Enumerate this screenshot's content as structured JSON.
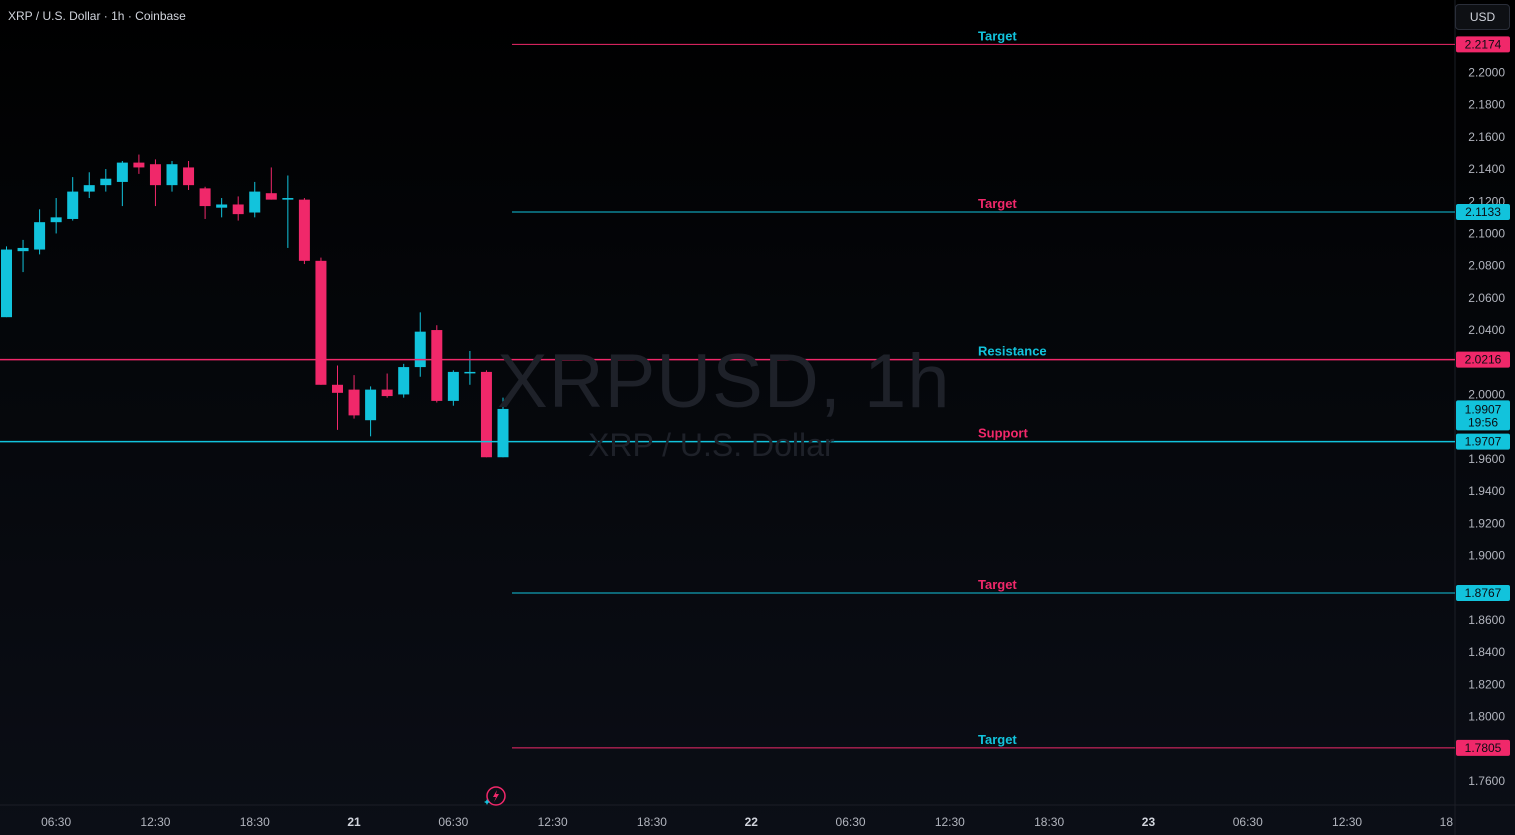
{
  "header": {
    "title": "XRP / U.S. Dollar · 1h · Coinbase"
  },
  "currency_button": {
    "label": "USD"
  },
  "watermark": {
    "symbol": "XRPUSD, 1h",
    "description": "XRP / U.S. Dollar"
  },
  "colors": {
    "up": "#12c3dc",
    "down": "#f0286a",
    "grid": "#1a1d25",
    "axis_text": "#b2b5be"
  },
  "chart_data": {
    "type": "candlestick",
    "y_scale": "linear",
    "ylim": [
      1.745,
      2.245
    ],
    "y_ticks": [
      "1.7600",
      "1.7800",
      "1.8000",
      "1.8200",
      "1.8400",
      "1.8600",
      "1.9000",
      "1.9200",
      "1.9400",
      "1.9600",
      "2.0000",
      "2.0400",
      "2.0600",
      "2.0800",
      "2.1000",
      "2.1200",
      "2.1400",
      "2.1600",
      "2.1800",
      "2.2000"
    ],
    "x_ticks": [
      {
        "label": "06:30",
        "bar": 3,
        "bold": false
      },
      {
        "label": "12:30",
        "bar": 9,
        "bold": false
      },
      {
        "label": "18:30",
        "bar": 15,
        "bold": false
      },
      {
        "label": "21",
        "bar": 21,
        "bold": true
      },
      {
        "label": "06:30",
        "bar": 27,
        "bold": false
      },
      {
        "label": "12:30",
        "bar": 33,
        "bold": false
      },
      {
        "label": "18:30",
        "bar": 39,
        "bold": false
      },
      {
        "label": "22",
        "bar": 45,
        "bold": true
      },
      {
        "label": "06:30",
        "bar": 51,
        "bold": false
      },
      {
        "label": "12:30",
        "bar": 57,
        "bold": false
      },
      {
        "label": "18:30",
        "bar": 63,
        "bold": false
      },
      {
        "label": "23",
        "bar": 69,
        "bold": true
      },
      {
        "label": "06:30",
        "bar": 75,
        "bold": false
      },
      {
        "label": "12:30",
        "bar": 81,
        "bold": false
      },
      {
        "label": "18",
        "bar": 87,
        "bold": false
      }
    ],
    "candles": [
      {
        "o": 2.048,
        "h": 2.092,
        "l": 2.048,
        "c": 2.09
      },
      {
        "o": 2.089,
        "h": 2.096,
        "l": 2.076,
        "c": 2.091
      },
      {
        "o": 2.09,
        "h": 2.115,
        "l": 2.087,
        "c": 2.107
      },
      {
        "o": 2.107,
        "h": 2.122,
        "l": 2.1,
        "c": 2.11
      },
      {
        "o": 2.109,
        "h": 2.135,
        "l": 2.108,
        "c": 2.126
      },
      {
        "o": 2.126,
        "h": 2.138,
        "l": 2.122,
        "c": 2.13
      },
      {
        "o": 2.13,
        "h": 2.14,
        "l": 2.126,
        "c": 2.134
      },
      {
        "o": 2.132,
        "h": 2.145,
        "l": 2.117,
        "c": 2.144
      },
      {
        "o": 2.144,
        "h": 2.149,
        "l": 2.137,
        "c": 2.141
      },
      {
        "o": 2.143,
        "h": 2.146,
        "l": 2.117,
        "c": 2.13
      },
      {
        "o": 2.13,
        "h": 2.145,
        "l": 2.126,
        "c": 2.143
      },
      {
        "o": 2.141,
        "h": 2.145,
        "l": 2.127,
        "c": 2.13
      },
      {
        "o": 2.128,
        "h": 2.129,
        "l": 2.109,
        "c": 2.117
      },
      {
        "o": 2.116,
        "h": 2.122,
        "l": 2.11,
        "c": 2.118
      },
      {
        "o": 2.118,
        "h": 2.123,
        "l": 2.108,
        "c": 2.112
      },
      {
        "o": 2.113,
        "h": 2.132,
        "l": 2.11,
        "c": 2.126
      },
      {
        "o": 2.125,
        "h": 2.141,
        "l": 2.121,
        "c": 2.121
      },
      {
        "o": 2.121,
        "h": 2.136,
        "l": 2.091,
        "c": 2.122
      },
      {
        "o": 2.121,
        "h": 2.122,
        "l": 2.081,
        "c": 2.083
      },
      {
        "o": 2.083,
        "h": 2.085,
        "l": 2.006,
        "c": 2.006
      },
      {
        "o": 2.006,
        "h": 2.018,
        "l": 1.978,
        "c": 2.001
      },
      {
        "o": 2.003,
        "h": 2.012,
        "l": 1.985,
        "c": 1.987
      },
      {
        "o": 1.984,
        "h": 2.005,
        "l": 1.974,
        "c": 2.003
      },
      {
        "o": 2.003,
        "h": 2.013,
        "l": 1.998,
        "c": 1.999
      },
      {
        "o": 2.0,
        "h": 2.019,
        "l": 1.998,
        "c": 2.017
      },
      {
        "o": 2.017,
        "h": 2.051,
        "l": 2.011,
        "c": 2.039
      },
      {
        "o": 2.04,
        "h": 2.043,
        "l": 1.995,
        "c": 1.996
      },
      {
        "o": 1.996,
        "h": 2.015,
        "l": 1.993,
        "c": 2.014
      },
      {
        "o": 2.014,
        "h": 2.027,
        "l": 2.006,
        "c": 2.014
      },
      {
        "o": 2.014,
        "h": 2.015,
        "l": 1.961,
        "c": 1.961
      },
      {
        "o": 1.961,
        "h": 1.998,
        "l": 1.961,
        "c": 1.991
      }
    ],
    "last_price": {
      "value": 1.9907,
      "label": "1.9907",
      "countdown": "19:56"
    },
    "levels": [
      {
        "name": "Target",
        "price": 2.2174,
        "price_label": "2.2174",
        "label_color": "#12c3dc",
        "line_color": "#f0286a",
        "badge_color": "#f0286a",
        "extends_left": false
      },
      {
        "name": "Target",
        "price": 2.1133,
        "price_label": "2.1133",
        "label_color": "#f0286a",
        "line_color": "#12c3dc",
        "badge_color": "#12c3dc",
        "extends_left": false
      },
      {
        "name": "Resistance",
        "price": 2.0216,
        "price_label": "2.0216",
        "label_color": "#12c3dc",
        "line_color": "#f0286a",
        "badge_color": "#f0286a",
        "extends_left": true
      },
      {
        "name": "Support",
        "price": 1.9707,
        "price_label": "1.9707",
        "label_color": "#f0286a",
        "line_color": "#12c3dc",
        "badge_color": "#12c3dc",
        "extends_left": true
      },
      {
        "name": "Target",
        "price": 1.8767,
        "price_label": "1.8767",
        "label_color": "#f0286a",
        "line_color": "#12c3dc",
        "badge_color": "#12c3dc",
        "extends_left": false
      },
      {
        "name": "Target",
        "price": 1.7805,
        "price_label": "1.7805",
        "label_color": "#12c3dc",
        "line_color": "#f0286a",
        "badge_color": "#f0286a",
        "extends_left": false
      }
    ]
  }
}
